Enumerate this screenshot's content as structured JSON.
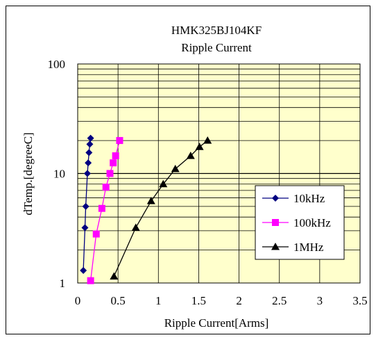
{
  "chart_data": {
    "type": "line",
    "title": "HMK325BJ104KF",
    "subtitle": "Ripple Current",
    "xlabel": "Ripple Current[Arms]",
    "ylabel": "dTemp.[degreeC]",
    "xlim": [
      0,
      3.5
    ],
    "ylim": [
      1,
      100
    ],
    "yscale": "log",
    "x_ticks": [
      0,
      0.5,
      1,
      1.5,
      2,
      2.5,
      3,
      3.5
    ],
    "x_tick_labels": [
      "0",
      "0.5",
      "1",
      "1.5",
      "2",
      "2.5",
      "3",
      "3.5"
    ],
    "y_ticks": [
      1,
      10,
      100
    ],
    "y_tick_labels": [
      "1",
      "10",
      "100"
    ],
    "grid": true,
    "plot_background": "#ffffcc",
    "legend_position": "bottom-right",
    "series": [
      {
        "name": "10kHz",
        "color": "#000080",
        "marker": "diamond",
        "x": [
          0.07,
          0.09,
          0.1,
          0.12,
          0.13,
          0.14,
          0.15,
          0.16
        ],
        "y": [
          1.3,
          3.2,
          5.0,
          10.0,
          12.5,
          15.5,
          18.5,
          21.0
        ]
      },
      {
        "name": "100kHz",
        "color": "#ff00ff",
        "marker": "square",
        "x": [
          0.16,
          0.23,
          0.3,
          0.35,
          0.4,
          0.44,
          0.47,
          0.52
        ],
        "y": [
          1.05,
          2.8,
          4.8,
          7.5,
          10.0,
          12.5,
          14.5,
          20.0
        ]
      },
      {
        "name": "1MHz",
        "color": "#000000",
        "marker": "triangle",
        "x": [
          0.45,
          0.72,
          0.91,
          1.06,
          1.21,
          1.4,
          1.51,
          1.61
        ],
        "y": [
          1.15,
          3.2,
          5.6,
          8.0,
          11.0,
          14.5,
          17.5,
          20.0
        ]
      }
    ]
  }
}
